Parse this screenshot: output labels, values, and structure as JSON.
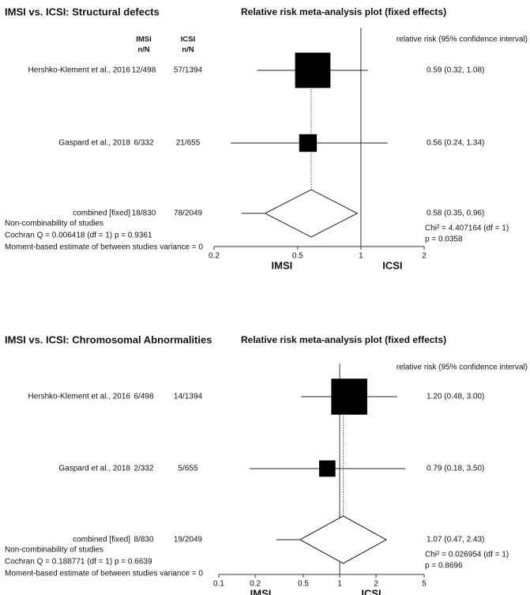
{
  "chart_data": [
    {
      "type": "forest",
      "title": "IMSI vs. ICSI: Structural defects",
      "subtitle": "Relative risk meta-analysis plot (fixed effects)",
      "imsi_header": "IMSI",
      "icsi_header": "ICSI",
      "count_header": "n/N",
      "ci_header": "relative risk (95% confidence interval)",
      "studies": [
        {
          "name": "Hershko-Klement et al., 2016",
          "imsi": "12/498",
          "icsi": "57/1394",
          "rr": 0.59,
          "ci": [
            0.32,
            1.08
          ],
          "weight": 80,
          "label": "0.59 (0.32, 1.08)"
        },
        {
          "name": "Gaspard et al., 2018",
          "imsi": "6/332",
          "icsi": "21/655",
          "rr": 0.56,
          "ci": [
            0.24,
            1.34
          ],
          "weight": 20,
          "label": "0.56 (0.24, 1.34)"
        }
      ],
      "combined": {
        "name": "combined [fixed]",
        "imsi": "18/830",
        "icsi": "78/2049",
        "rr": 0.58,
        "ci": [
          0.35,
          0.96
        ],
        "label": "0.58 (0.35, 0.96)"
      },
      "notes": [
        "Non-combinability of studies",
        "Cochran Q = 0.006418  (df = 1)  p = 0.9361",
        "Moment-based estimate of between studies variance = 0"
      ],
      "stats": [
        "Chi² = 4.407164  (df = 1)",
        "p = 0.0358"
      ],
      "xlabel_left": "IMSI",
      "xlabel_right": "ICSI",
      "log_x": true,
      "xlim": [
        0.2,
        2
      ],
      "xticks": [
        0.2,
        0.5,
        1,
        2
      ]
    },
    {
      "type": "forest",
      "title": "IMSI vs. ICSI: Chromosomal Abnormalities",
      "subtitle": "Relative risk meta-analysis plot (fixed effects)",
      "ci_header": "relative risk (95% confidence interval)",
      "studies": [
        {
          "name": "Hershko-Klement et al., 2016",
          "imsi": "6/498",
          "icsi": "14/1394",
          "rr": 1.2,
          "ci": [
            0.48,
            3.0
          ],
          "weight": 83,
          "label": "1.20 (0.48, 3.00)"
        },
        {
          "name": "Gaspard et al., 2018",
          "imsi": "2/332",
          "icsi": "5/655",
          "rr": 0.79,
          "ci": [
            0.18,
            3.5
          ],
          "weight": 17,
          "label": "0.79 (0.18, 3.50)"
        }
      ],
      "combined": {
        "name": "combined [fixed]",
        "imsi": "8/830",
        "icsi": "19/2049",
        "rr": 1.07,
        "ci": [
          0.47,
          2.43
        ],
        "label": "1.07 (0.47, 2.43)"
      },
      "notes": [
        "Non-combinability of studies",
        "Cochran Q = 0.188771  (df = 1)  p = 0.6639",
        "Moment-based estimate of between studies variance = 0"
      ],
      "stats": [
        "Chi² = 0.026954  (df = 1)",
        "p = 0.8696"
      ],
      "xlabel_left": "IMSI",
      "xlabel_right": "ICSI",
      "log_x": true,
      "xlim": [
        0.1,
        5
      ],
      "xticks": [
        0.1,
        0.2,
        0.5,
        1,
        2,
        5
      ]
    }
  ]
}
